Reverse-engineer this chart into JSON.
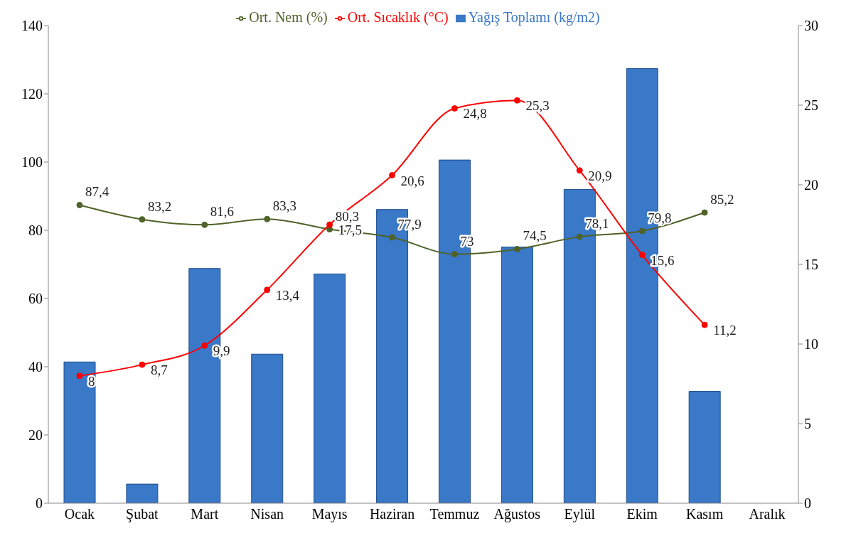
{
  "chart_data": {
    "type": "bar",
    "categories": [
      "Ocak",
      "Şubat",
      "Mart",
      "Nisan",
      "Mayıs",
      "Haziran",
      "Temmuz",
      "Ağustos",
      "Eylül",
      "Ekim",
      "Kasım",
      "Aralık"
    ],
    "series": [
      {
        "name": "Yağış Toplamı (kg/m2)",
        "color": "#3a78c8",
        "values": [
          41.4,
          5.6,
          68.8,
          43.7,
          67.2,
          86.1,
          100.6,
          75.1,
          92.0,
          127.4,
          32.8,
          null
        ]
      },
      {
        "name": "Ort. Nem (%)",
        "type": "line",
        "color": "#4f6228",
        "values": [
          87.4,
          83.2,
          81.6,
          83.3,
          80.3,
          77.9,
          73,
          74.5,
          78.1,
          79.8,
          85.2,
          null
        ],
        "value_labels": [
          "87,4",
          "83,2",
          "81,6",
          "83,3",
          "80,3",
          "77,9",
          "73",
          "74,5",
          "78,1",
          "79,8",
          "85,2",
          null
        ]
      },
      {
        "name": "Ort. Sıcaklık (°C)",
        "type": "line",
        "axis": "y2",
        "color": "#ff0000",
        "values": [
          8,
          8.7,
          9.9,
          13.4,
          17.5,
          20.6,
          24.8,
          25.3,
          20.9,
          15.6,
          11.2,
          null
        ],
        "value_labels": [
          "8",
          "8,7",
          "9,9",
          "13,4",
          "17,5",
          "20,6",
          "24,8",
          "25,3",
          "20,9",
          "15,6",
          "11,2",
          null
        ]
      }
    ],
    "ylim": [
      0,
      140
    ],
    "yticks": [
      0,
      20,
      40,
      60,
      80,
      100,
      120,
      140
    ],
    "y2lim": [
      0,
      30
    ],
    "y2ticks": [
      0,
      5,
      10,
      15,
      20,
      25,
      30
    ],
    "grid": false,
    "legend": "top",
    "marker": "circle",
    "line_style": "solid"
  }
}
